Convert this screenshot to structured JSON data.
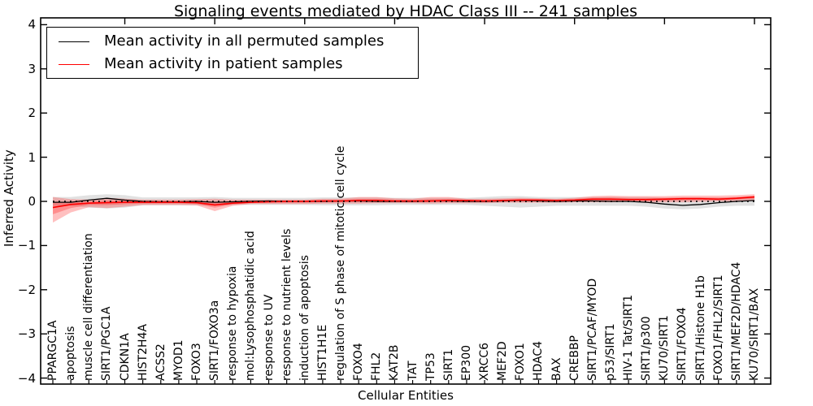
{
  "chart_data": {
    "type": "line",
    "title": "Signaling events mediated by HDAC Class III -- 241 samples",
    "xlabel": "Cellular Entities",
    "ylabel": "Inferred Activity",
    "ylim": [
      -4,
      4
    ],
    "yticks": [
      "4",
      "3",
      "2",
      "1",
      "0",
      "-1",
      "-2",
      "-3",
      "-4"
    ],
    "major_tick_indices": [
      4,
      9,
      14,
      19,
      24,
      29,
      34,
      39
    ],
    "grid": false,
    "legend_position": "upper-left",
    "legend": [
      "Mean activity in all permuted samples",
      "Mean activity in patient samples"
    ],
    "colors": {
      "permuted": "#000000",
      "patient": "#ff0000",
      "permuted_band": "#aaaaaa",
      "patient_band": "#ff3030"
    },
    "categories": [
      "PPARGC1A",
      "apoptosis",
      "muscle cell differentiation",
      "SIRT1/PGC1A",
      "CDKN1A",
      "HIST2H4A",
      "ACSS2",
      "MYOD1",
      "FOXO3",
      "SIRT1/FOXO3a",
      "response to hypoxia",
      "mol:Lysophosphatidic acid",
      "response to UV",
      "response to nutrient levels",
      "induction of apoptosis",
      "HIST1H1E",
      "regulation of S phase of mitotic cell cycle",
      "FOXO4",
      "FHL2",
      "KAT2B",
      "TAT",
      "TP53",
      "SIRT1",
      "EP300",
      "XRCC6",
      "MEF2D",
      "FOXO1",
      "HDAC4",
      "BAX",
      "CREBBP",
      "SIRT1/PCAF/MYOD",
      "p53/SIRT1",
      "HIV-1 Tat/SIRT1",
      "SIRT1/p300",
      "KU70/SIRT1",
      "SIRT1/FOXO4",
      "SIRT1/Histone H1b",
      "FOXO1/FHL2/SIRT1",
      "SIRT1/MEF2D/HDAC4",
      "KU70/SIRT1/BAX"
    ],
    "series": [
      {
        "name": "Mean activity in all permuted samples",
        "values": [
          -0.02,
          -0.02,
          0.03,
          0.07,
          0.03,
          0.0,
          -0.01,
          -0.01,
          0.0,
          -0.02,
          -0.01,
          0.0,
          0.01,
          0.0,
          0.0,
          0.0,
          0.01,
          0.01,
          0.0,
          0.0,
          0.0,
          0.01,
          0.01,
          0.0,
          0.0,
          0.01,
          0.02,
          0.01,
          0.0,
          0.01,
          0.01,
          0.0,
          0.0,
          -0.02,
          -0.06,
          -0.09,
          -0.07,
          -0.03,
          0.0,
          0.02
        ]
      },
      {
        "name": "Mean activity in patient samples",
        "values": [
          -0.14,
          -0.07,
          -0.04,
          -0.03,
          -0.02,
          -0.02,
          -0.02,
          -0.02,
          -0.03,
          -0.08,
          -0.04,
          -0.02,
          -0.01,
          0.0,
          0.0,
          0.01,
          0.01,
          0.02,
          0.02,
          0.01,
          0.01,
          0.01,
          0.02,
          0.02,
          0.01,
          0.02,
          0.03,
          0.03,
          0.02,
          0.03,
          0.05,
          0.05,
          0.04,
          0.04,
          0.05,
          0.06,
          0.06,
          0.05,
          0.07,
          0.1
        ]
      }
    ],
    "bands": {
      "permuted": {
        "lo": [
          -0.1,
          -0.1,
          -0.14,
          -0.16,
          -0.14,
          -0.09,
          -0.09,
          -0.09,
          -0.09,
          -0.1,
          -0.08,
          -0.08,
          -0.08,
          -0.08,
          -0.08,
          -0.09,
          -0.09,
          -0.09,
          -0.09,
          -0.08,
          -0.08,
          -0.08,
          -0.08,
          -0.08,
          -0.1,
          -0.12,
          -0.14,
          -0.12,
          -0.1,
          -0.1,
          -0.1,
          -0.1,
          -0.1,
          -0.12,
          -0.16,
          -0.18,
          -0.16,
          -0.12,
          -0.1,
          -0.1
        ],
        "hi": [
          0.1,
          0.1,
          0.14,
          0.16,
          0.14,
          0.09,
          0.09,
          0.09,
          0.09,
          0.1,
          0.08,
          0.08,
          0.08,
          0.08,
          0.08,
          0.09,
          0.09,
          0.09,
          0.09,
          0.08,
          0.08,
          0.08,
          0.08,
          0.08,
          0.1,
          0.12,
          0.12,
          0.1,
          0.1,
          0.1,
          0.1,
          0.1,
          0.1,
          0.1,
          0.08,
          0.08,
          0.08,
          0.08,
          0.08,
          0.1
        ]
      },
      "patient": {
        "lo": [
          -0.48,
          -0.25,
          -0.13,
          -0.15,
          -0.12,
          -0.08,
          -0.08,
          -0.08,
          -0.09,
          -0.22,
          -0.1,
          -0.06,
          -0.06,
          -0.06,
          -0.06,
          -0.05,
          -0.05,
          -0.05,
          -0.04,
          -0.04,
          -0.04,
          -0.05,
          -0.04,
          -0.04,
          -0.04,
          -0.03,
          -0.03,
          -0.03,
          -0.03,
          -0.02,
          -0.02,
          -0.02,
          -0.01,
          -0.02,
          -0.02,
          -0.02,
          -0.01,
          0.0,
          0.0,
          0.02
        ],
        "hi": [
          0.1,
          0.05,
          0.04,
          0.08,
          0.06,
          0.04,
          0.04,
          0.04,
          0.05,
          0.06,
          0.04,
          0.04,
          0.04,
          0.04,
          0.04,
          0.06,
          0.06,
          0.1,
          0.1,
          0.07,
          0.06,
          0.1,
          0.1,
          0.06,
          0.06,
          0.07,
          0.08,
          0.07,
          0.06,
          0.08,
          0.12,
          0.13,
          0.12,
          0.12,
          0.12,
          0.13,
          0.13,
          0.13,
          0.14,
          0.16
        ]
      }
    }
  }
}
